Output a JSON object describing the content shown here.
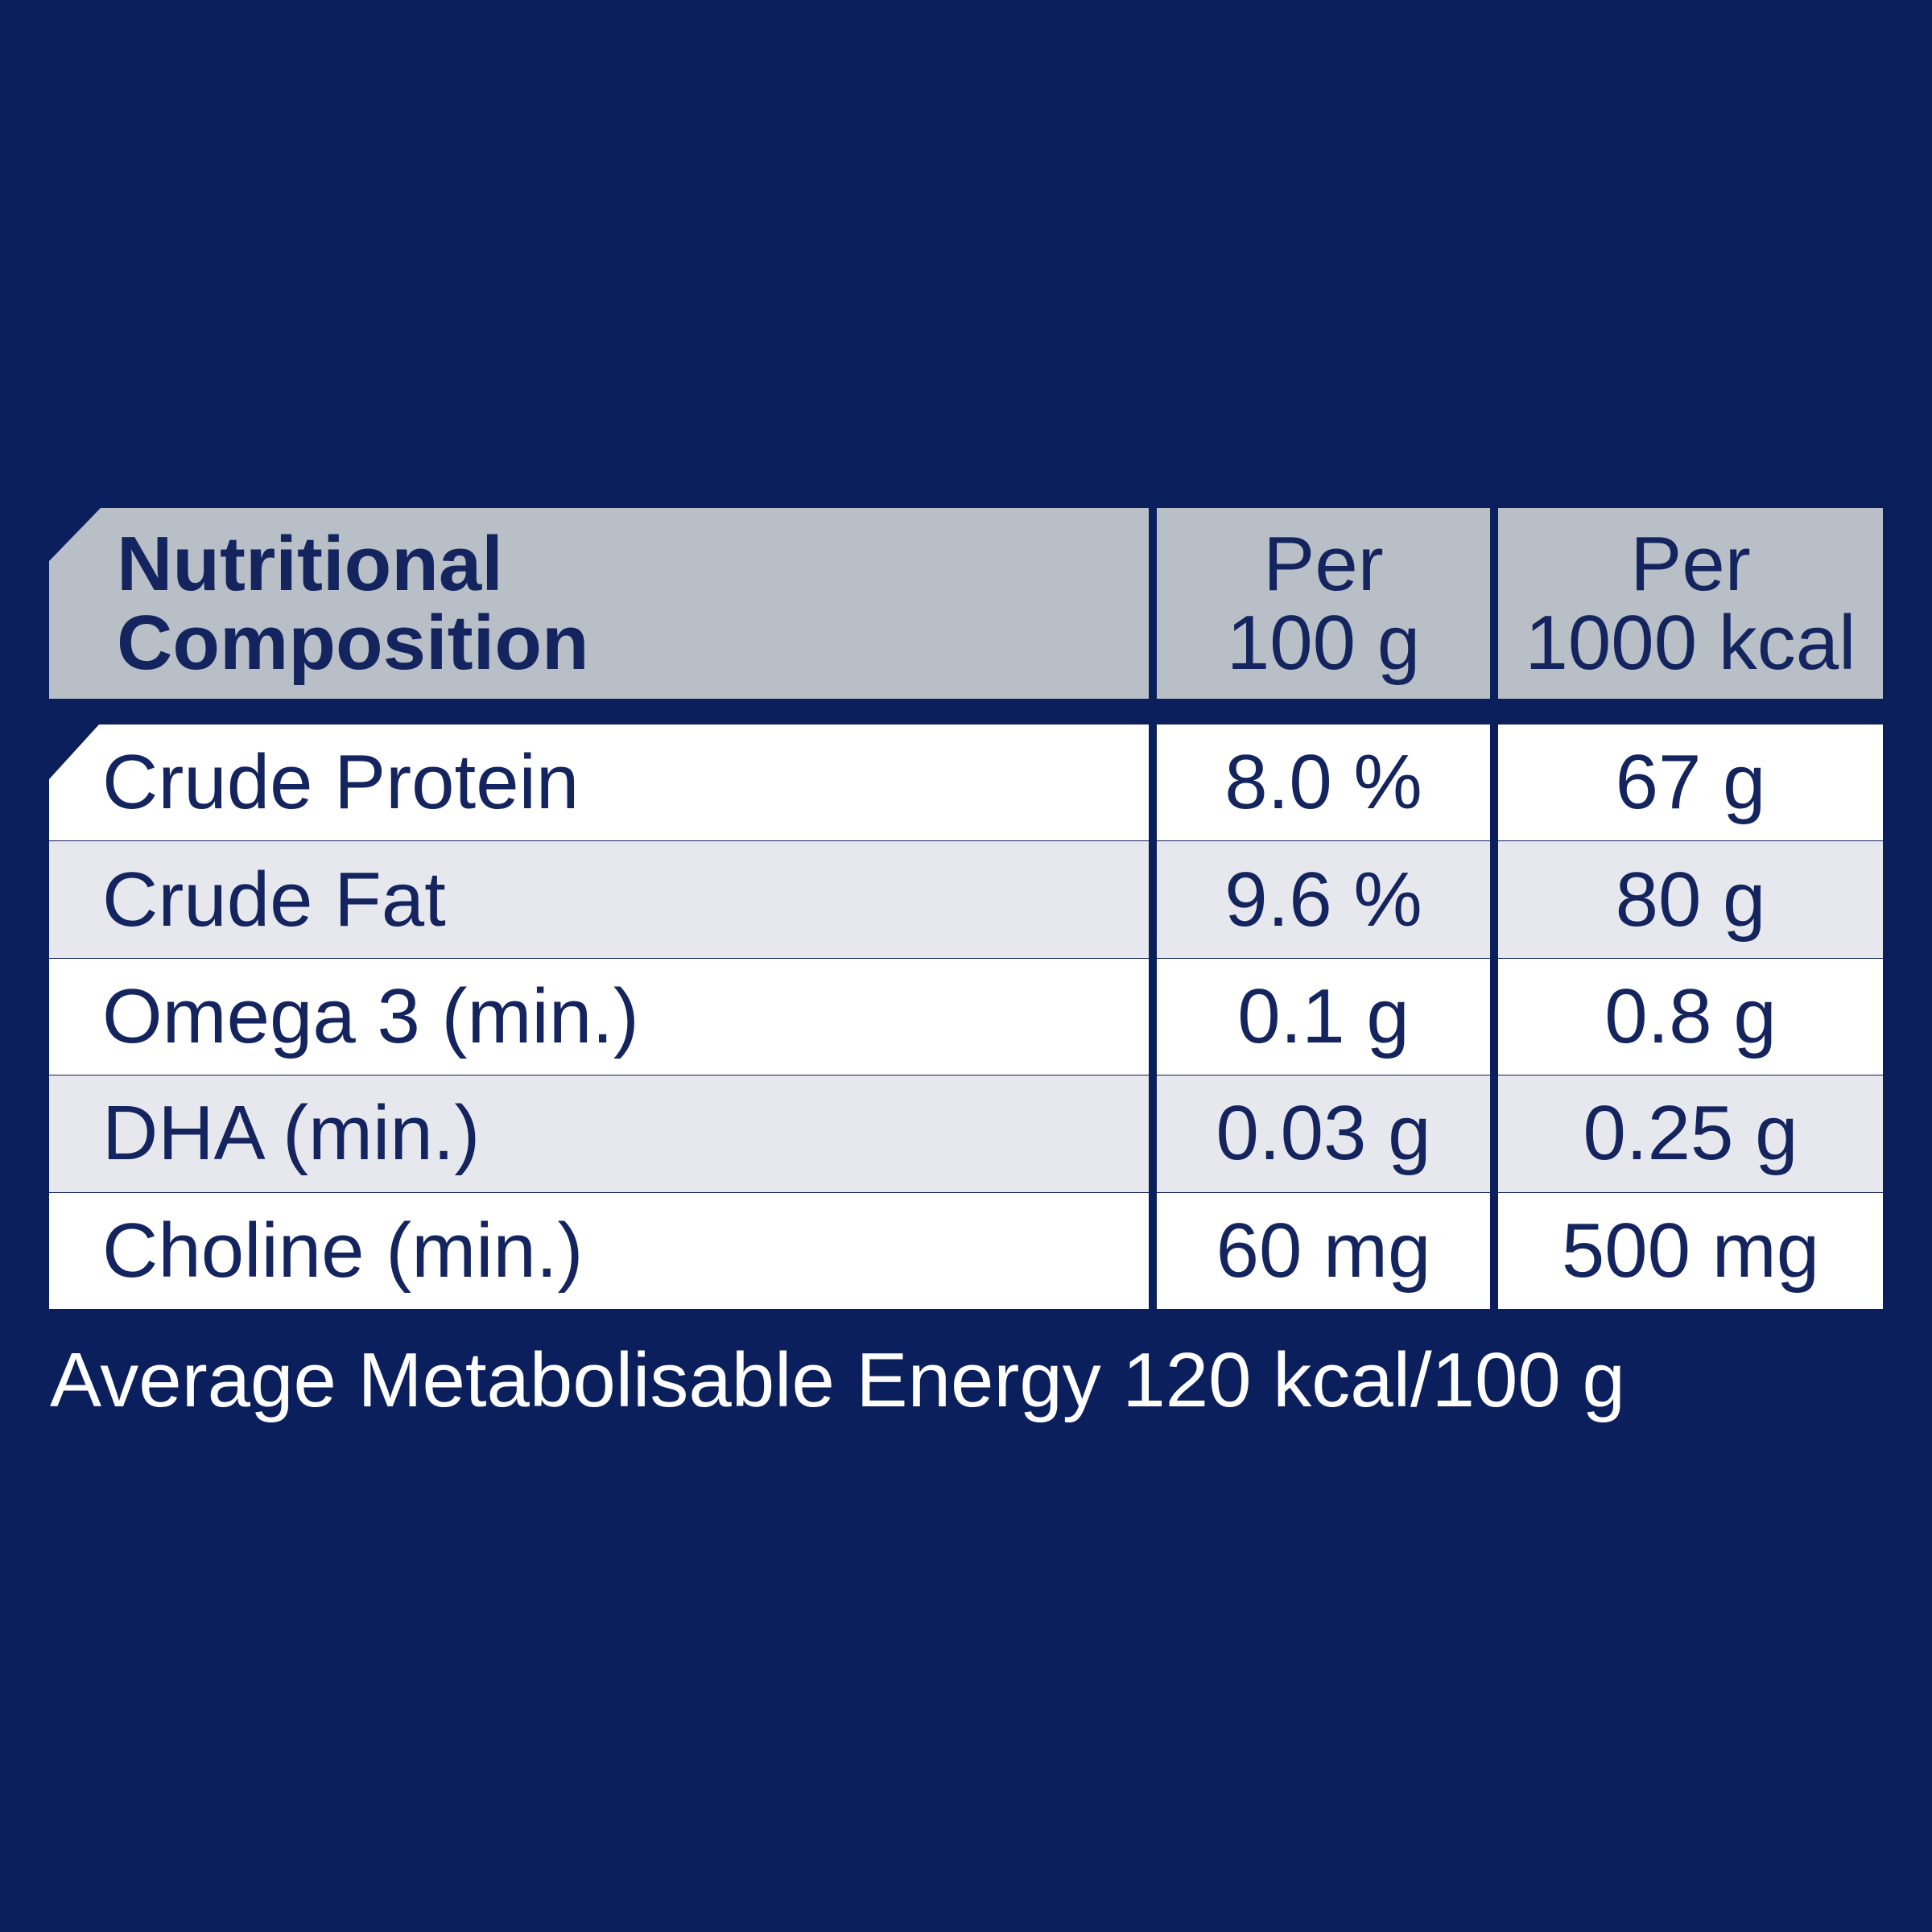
{
  "table": {
    "header": [
      [
        "Nutritional",
        "Composition"
      ],
      [
        "Per",
        "100 g"
      ],
      [
        "Per",
        "1000 kcal"
      ]
    ],
    "rows": [
      [
        "Crude Protein",
        "8.0 %",
        "67 g"
      ],
      [
        "Crude Fat",
        "9.6 %",
        "80 g"
      ],
      [
        "Omega 3 (min.)",
        "0.1 g",
        "0.8 g"
      ],
      [
        "DHA (min.)",
        "0.03 g",
        "0.25 g"
      ],
      [
        "Choline (min.)",
        "60 mg",
        "500 mg"
      ]
    ]
  },
  "footer": "Average Metabolisable Energy 120 kcal/100 g"
}
